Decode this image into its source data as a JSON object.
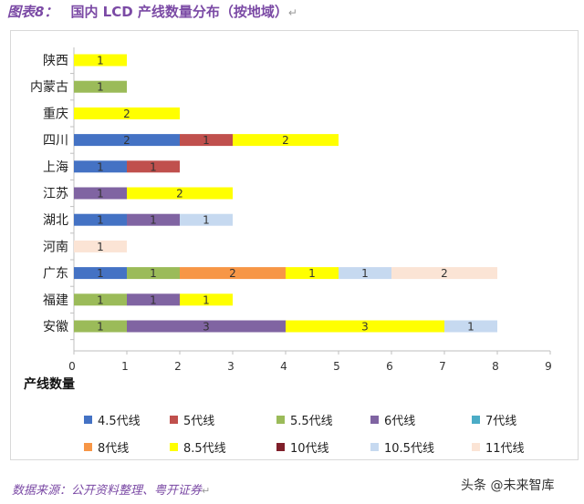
{
  "title": {
    "label": "图表8：",
    "text": "国内 LCD 产线数量分布（按地域）",
    "return_mark": "↵"
  },
  "source": {
    "text": "数据来源：公开资料整理、粤开证券",
    "return_mark": "↵"
  },
  "watermark": "头条 @未来智库",
  "chart_data": {
    "type": "bar",
    "orientation": "horizontal",
    "stacked": true,
    "title": "",
    "xlabel": "产线数量",
    "ylabel": "",
    "xlim": [
      0,
      9
    ],
    "xticks": [
      0,
      1,
      2,
      3,
      4,
      5,
      6,
      7,
      8,
      9
    ],
    "grid": false,
    "legend_position": "bottom",
    "categories": [
      "陕西",
      "内蒙古",
      "重庆",
      "四川",
      "上海",
      "江苏",
      "湖北",
      "河南",
      "广东",
      "福建",
      "安徽"
    ],
    "series": [
      {
        "name": "4.5代线",
        "color": "#4472c4",
        "values": [
          0,
          0,
          0,
          2,
          1,
          0,
          1,
          0,
          1,
          0,
          0
        ]
      },
      {
        "name": "5代线",
        "color": "#c0504d",
        "values": [
          0,
          0,
          0,
          1,
          1,
          0,
          0,
          0,
          0,
          0,
          0
        ]
      },
      {
        "name": "5.5代线",
        "color": "#9bbb59",
        "values": [
          0,
          1,
          0,
          0,
          0,
          0,
          0,
          0,
          1,
          1,
          1
        ]
      },
      {
        "name": "6代线",
        "color": "#8064a2",
        "values": [
          0,
          0,
          0,
          0,
          0,
          1,
          1,
          0,
          0,
          1,
          3
        ]
      },
      {
        "name": "7代线",
        "color": "#4bacc6",
        "values": [
          0,
          0,
          0,
          0,
          0,
          0,
          0,
          0,
          0,
          0,
          0
        ]
      },
      {
        "name": "8代线",
        "color": "#f79646",
        "values": [
          0,
          0,
          0,
          0,
          0,
          0,
          0,
          0,
          2,
          0,
          0
        ]
      },
      {
        "name": "8.5代线",
        "color": "#ffff00",
        "values": [
          1,
          0,
          2,
          2,
          0,
          2,
          0,
          0,
          1,
          1,
          3
        ]
      },
      {
        "name": "10代线",
        "color": "#7f1f2a",
        "values": [
          0,
          0,
          0,
          0,
          0,
          0,
          0,
          0,
          0,
          0,
          0
        ]
      },
      {
        "name": "10.5代线",
        "color": "#c6d9f0",
        "values": [
          0,
          0,
          0,
          0,
          0,
          0,
          1,
          0,
          1,
          0,
          1
        ]
      },
      {
        "name": "11代线",
        "color": "#fbe4d5",
        "values": [
          0,
          0,
          0,
          0,
          0,
          0,
          0,
          1,
          2,
          0,
          0
        ]
      }
    ]
  }
}
